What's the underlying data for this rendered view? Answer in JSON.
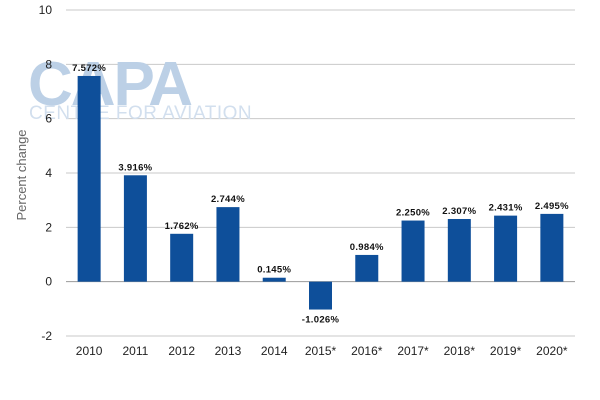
{
  "watermark": {
    "main": "CAPA",
    "sub": "CENTRE FOR AVIATION"
  },
  "colors": {
    "bar": "#0e4f9a",
    "grid": "#c9c9c9",
    "axis": "#9a9a9a"
  },
  "chart_data": {
    "type": "bar",
    "ylabel": "Percent change",
    "xlabel": "",
    "ylim": [
      -2,
      10
    ],
    "yticks": [
      -2,
      0,
      2,
      4,
      6,
      8,
      10
    ],
    "ytick_labels": [
      "-2",
      "0",
      "2",
      "4",
      "6",
      "8",
      "10"
    ],
    "grid": "horizontal",
    "categories": [
      "2010",
      "2011",
      "2012",
      "2013",
      "2014",
      "2015*",
      "2016*",
      "2017*",
      "2018*",
      "2019*",
      "2020*"
    ],
    "values": [
      7.572,
      3.916,
      1.762,
      2.744,
      0.145,
      -1.026,
      0.984,
      2.25,
      2.307,
      2.431,
      2.495
    ],
    "data_labels": [
      "7.572%",
      "3.916%",
      "1.762%",
      "2.744%",
      "0.145%",
      "-1.026%",
      "0.984%",
      "2.250%",
      "2.307%",
      "2.431%",
      "2.495%"
    ]
  }
}
